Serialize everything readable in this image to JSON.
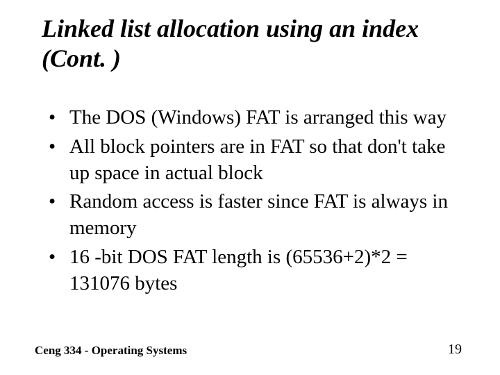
{
  "slide": {
    "title": "Linked list allocation using an index (Cont. )",
    "title_fontsize": 36,
    "title_fontweight": "bold",
    "title_fontstyle": "italic",
    "bullets": [
      "The DOS (Windows) FAT is arranged this way",
      "All block pointers are in FAT so that don't take up space in actual block",
      "Random access is faster since FAT is always in memory",
      "16 -bit DOS FAT length is (65536+2)*2 = 131076 bytes"
    ],
    "bullet_fontsize": 29,
    "footer": "Ceng 334  -  Operating Systems",
    "footer_fontsize": 17,
    "footer_fontweight": "bold",
    "page_number": "19",
    "page_number_fontsize": 20,
    "background_color": "#ffffff",
    "text_color": "#000000",
    "font_family": "Times New Roman"
  }
}
